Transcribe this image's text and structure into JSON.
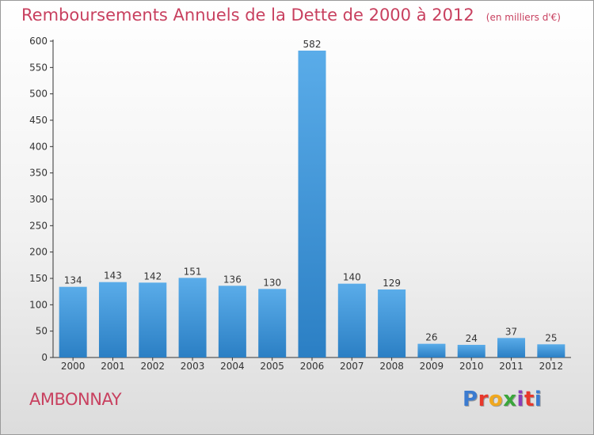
{
  "header": {
    "title": "Remboursements Annuels de la Dette de 2000 à 2012",
    "unit": "(en milliers d'€)"
  },
  "footer": {
    "commune": "AMBONNAY",
    "logo_text": "Proxiti",
    "logo_colors": [
      "#3b7bd0",
      "#e8382c",
      "#f0a81f",
      "#3aa63b",
      "#8a3fb8",
      "#e8382c",
      "#3b7bd0"
    ]
  },
  "colors": {
    "bar_light": "#5aace9",
    "bar_dark": "#2b7fc4",
    "text": "#c8405f",
    "axis": "#333333"
  },
  "chart_data": {
    "type": "bar",
    "categories": [
      "2000",
      "2001",
      "2002",
      "2003",
      "2004",
      "2005",
      "2006",
      "2007",
      "2008",
      "2009",
      "2010",
      "2011",
      "2012"
    ],
    "values": [
      134,
      143,
      142,
      151,
      136,
      130,
      582,
      140,
      129,
      26,
      24,
      37,
      25
    ],
    "data_labels": [
      "134",
      "143",
      "142",
      "151",
      "136",
      "130",
      "582",
      "140",
      "129",
      "26",
      "24",
      "37",
      "25"
    ],
    "y_ticks": [
      0,
      50,
      100,
      150,
      200,
      250,
      300,
      350,
      400,
      450,
      500,
      550,
      600
    ],
    "ylim": [
      0,
      600
    ],
    "grid": false,
    "legend": "none"
  }
}
